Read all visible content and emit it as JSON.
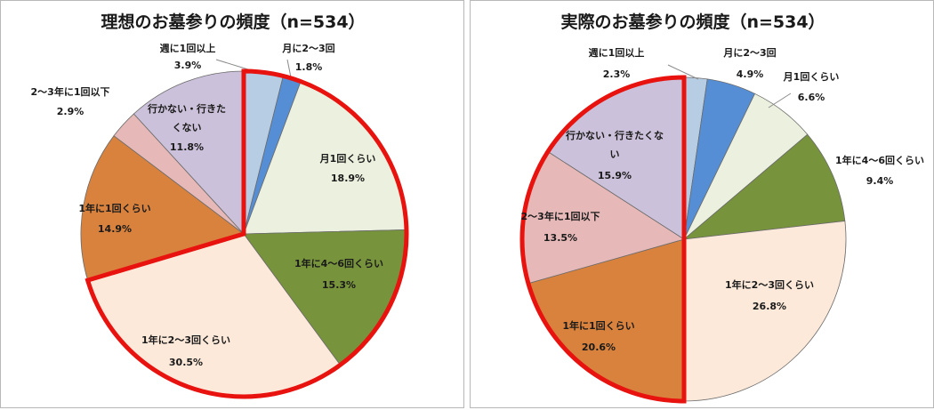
{
  "colors": {
    "weekly": "#b7cde4",
    "monthly2_3": "#558ed5",
    "monthly1": "#ebf1de",
    "yearly4_6": "#77933c",
    "yearly2_3": "#fde9d9",
    "yearly1": "#d8823e",
    "twothree_years": "#e6b9b8",
    "none": "#ccc1da",
    "highlight": "#e8120f"
  },
  "chart_data": [
    {
      "type": "pie",
      "title": "理想のお墓参りの頻度（n=534）",
      "slices": [
        {
          "label": "週に1回以上",
          "value": 3.9,
          "value_text": "3.9%",
          "color": "#b7cde4"
        },
        {
          "label": "月に2～3回",
          "value": 1.8,
          "value_text": "1.8%",
          "color": "#558ed5"
        },
        {
          "label": "月1回くらい",
          "value": 18.9,
          "value_text": "18.9%",
          "color": "#ebf1de"
        },
        {
          "label": "1年に4～6回くらい",
          "value": 15.3,
          "value_text": "15.3%",
          "color": "#77933c"
        },
        {
          "label": "1年に2～3回くらい",
          "value": 30.5,
          "value_text": "30.5%",
          "color": "#fde9d9"
        },
        {
          "label": "1年に1回くらい",
          "value": 14.9,
          "value_text": "14.9%",
          "color": "#d8823e"
        },
        {
          "label": "2～3年に1回以下",
          "value": 2.9,
          "value_text": "2.9%",
          "color": "#e6b9b8"
        },
        {
          "label": "行かない・行きたくない",
          "value": 11.8,
          "value_text": "11.8%",
          "color": "#ccc1da"
        }
      ],
      "highlight": {
        "from": 0,
        "to": 4
      }
    },
    {
      "type": "pie",
      "title": "実際のお墓参りの頻度（n=534）",
      "slices": [
        {
          "label": "週に1回以上",
          "value": 2.3,
          "value_text": "2.3%",
          "color": "#b7cde4"
        },
        {
          "label": "月に2～3回",
          "value": 4.9,
          "value_text": "4.9%",
          "color": "#558ed5"
        },
        {
          "label": "月1回くらい",
          "value": 6.6,
          "value_text": "6.6%",
          "color": "#ebf1de"
        },
        {
          "label": "1年に4～6回くらい",
          "value": 9.4,
          "value_text": "9.4%",
          "color": "#77933c"
        },
        {
          "label": "1年に2～3回くらい",
          "value": 26.8,
          "value_text": "26.8%",
          "color": "#fde9d9"
        },
        {
          "label": "1年に1回くらい",
          "value": 20.6,
          "value_text": "20.6%",
          "color": "#d8823e"
        },
        {
          "label": "2～3年に1回以下",
          "value": 13.5,
          "value_text": "13.5%",
          "color": "#e6b9b8"
        },
        {
          "label": "行かない・行きたくない",
          "value": 15.9,
          "value_text": "15.9%",
          "color": "#ccc1da"
        }
      ],
      "highlight": {
        "from": 5,
        "to": 7
      }
    }
  ]
}
